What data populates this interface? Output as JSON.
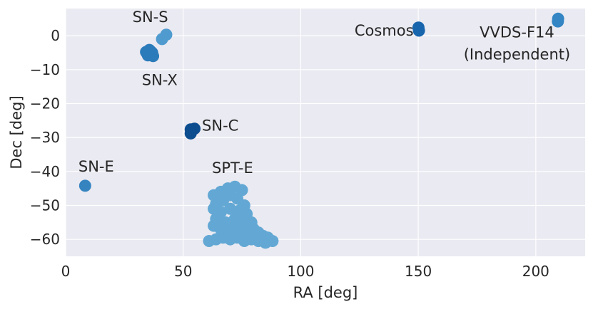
{
  "chart_data": {
    "type": "scatter",
    "xlabel": "RA [deg]",
    "ylabel": "Dec [deg]",
    "xlim": [
      0,
      221
    ],
    "ylim": [
      -65,
      8
    ],
    "xticks": [
      0,
      50,
      100,
      150,
      200
    ],
    "yticks": [
      0,
      -10,
      -20,
      -30,
      -40,
      -50,
      -60
    ],
    "xtick_labels": [
      "0",
      "50",
      "100",
      "150",
      "200"
    ],
    "ytick_labels": [
      "0",
      "−10",
      "−20",
      "−30",
      "−40",
      "−50",
      "−60"
    ],
    "grid": true,
    "background": "#EAEAF2",
    "grid_color": "#FFFFFF",
    "fields": [
      {
        "name": "SN-S",
        "color": "#4f9bcf",
        "points": [
          [
            41,
            -1
          ],
          [
            42.8,
            0.3
          ]
        ]
      },
      {
        "name": "SN-X",
        "color": "#2b7bba",
        "points": [
          [
            34.2,
            -4.8
          ],
          [
            35.6,
            -4.2
          ],
          [
            36.8,
            -5.0
          ],
          [
            35,
            -5.8
          ],
          [
            37.2,
            -6.0
          ],
          [
            34.6,
            -5.2
          ],
          [
            36.2,
            -4.6
          ]
        ]
      },
      {
        "name": "SN-C",
        "color": "#0b4d8f",
        "points": [
          [
            53.2,
            -27.6
          ],
          [
            54.8,
            -27.4
          ],
          [
            53.2,
            -28.8
          ]
        ]
      },
      {
        "name": "SN-E",
        "color": "#3584c0",
        "points": [
          [
            8.3,
            -44.2
          ]
        ]
      },
      {
        "name": "Cosmos",
        "color": "#1765ad",
        "points": [
          [
            150.1,
            2.4
          ],
          [
            150.3,
            1.5
          ]
        ]
      },
      {
        "name": "VVDS-F14",
        "color": "#3385c3",
        "points": [
          [
            209.5,
            5.0
          ],
          [
            209.4,
            4.2
          ]
        ]
      },
      {
        "name": "SPT-E",
        "color": "#63a8d4",
        "points": [
          [
            63,
            -47
          ],
          [
            66,
            -46
          ],
          [
            69,
            -45
          ],
          [
            72,
            -44.5
          ],
          [
            75,
            -45.5
          ],
          [
            70,
            -47
          ],
          [
            64,
            -49.5
          ],
          [
            67,
            -48.5
          ],
          [
            73,
            -48
          ],
          [
            76,
            -50
          ],
          [
            63,
            -51
          ],
          [
            66,
            -52
          ],
          [
            70,
            -51
          ],
          [
            74,
            -51.5
          ],
          [
            77,
            -52.5
          ],
          [
            64,
            -54
          ],
          [
            68,
            -55
          ],
          [
            72,
            -54
          ],
          [
            75,
            -55
          ],
          [
            79,
            -55
          ],
          [
            63,
            -56
          ],
          [
            66,
            -57
          ],
          [
            70,
            -56.5
          ],
          [
            74,
            -57
          ],
          [
            77,
            -57.5
          ],
          [
            80,
            -57
          ],
          [
            82,
            -58
          ],
          [
            84,
            -59
          ],
          [
            86,
            -59.5
          ],
          [
            61,
            -60.5
          ],
          [
            64,
            -60
          ],
          [
            67,
            -59.5
          ],
          [
            70,
            -60
          ],
          [
            73,
            -59.5
          ],
          [
            76,
            -60.5
          ],
          [
            79,
            -60
          ],
          [
            82,
            -60.5
          ],
          [
            85,
            -61
          ],
          [
            88,
            -60.5
          ],
          [
            68,
            -58.5
          ],
          [
            72,
            -58
          ]
        ]
      }
    ],
    "annotations": [
      {
        "text": "SN-S",
        "x": 36,
        "y": 4,
        "ha": "center"
      },
      {
        "text": "SN-X",
        "x": 40,
        "y": -14.5,
        "ha": "center"
      },
      {
        "text": "SN-C",
        "x": 58,
        "y": -28,
        "ha": "left"
      },
      {
        "text": "SN-E",
        "x": 13,
        "y": -40,
        "ha": "center"
      },
      {
        "text": "SPT-E",
        "x": 71,
        "y": -40.5,
        "ha": "center"
      },
      {
        "text": "Cosmos",
        "x": 148,
        "y": 0,
        "ha": "right"
      },
      {
        "text": "VVDS-F14",
        "x": 192,
        "y": -0.5,
        "ha": "center"
      },
      {
        "text": "(Independent)",
        "x": 192,
        "y": -7,
        "ha": "center"
      }
    ]
  }
}
